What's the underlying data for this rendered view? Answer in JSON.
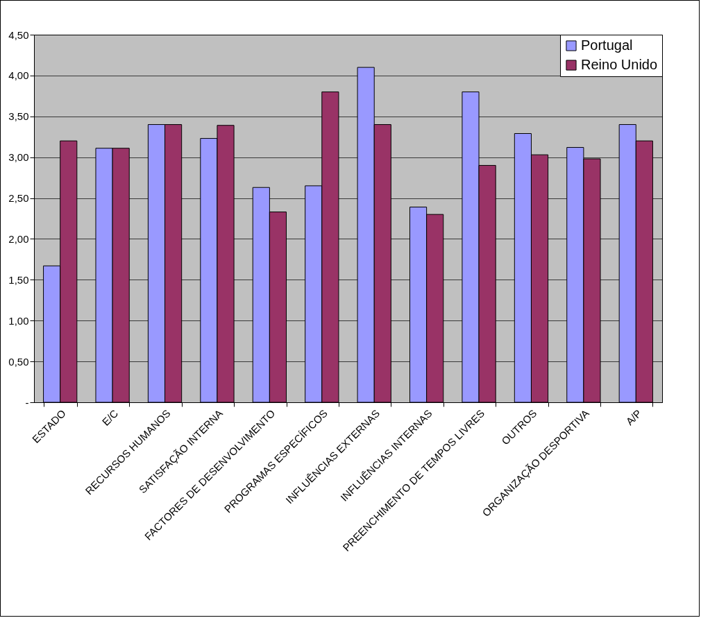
{
  "chart_data": {
    "type": "bar",
    "categories": [
      "ESTADO",
      "E/C",
      "RECURSOS HUMANOS",
      "SATISFAÇÃO INTERNA",
      "FACTORES DE DESENVOLVIMENTO",
      "PROGRAMAS ESPECÍFICOS",
      "INFLUÊNCIAS EXTERNAS",
      "INFLUÊNCIAS INTERNAS",
      "PREENCHIMENTO DE TEMPOS LIVRES",
      "OUTROS",
      "ORGANIZAÇÃO DESPORTIVA",
      "A/P"
    ],
    "series": [
      {
        "name": "Portugal",
        "color": "#9999ff",
        "values": [
          1.67,
          3.11,
          3.4,
          3.23,
          2.63,
          2.65,
          4.1,
          2.39,
          3.8,
          3.29,
          3.12,
          3.4
        ]
      },
      {
        "name": "Reino Unido",
        "color": "#993366",
        "values": [
          3.2,
          3.11,
          3.4,
          3.39,
          2.33,
          3.8,
          3.4,
          2.3,
          2.9,
          3.03,
          2.98,
          3.2
        ]
      }
    ],
    "ylim": [
      0,
      4.5
    ],
    "yticks": [
      {
        "value": 0,
        "label": "-"
      },
      {
        "value": 0.5,
        "label": "0,50"
      },
      {
        "value": 1,
        "label": "1,00"
      },
      {
        "value": 1.5,
        "label": "1,50"
      },
      {
        "value": 2,
        "label": "2,00"
      },
      {
        "value": 2.5,
        "label": "2,50"
      },
      {
        "value": 3,
        "label": "3,00"
      },
      {
        "value": 3.5,
        "label": "3,50"
      },
      {
        "value": 4,
        "label": "4,00"
      },
      {
        "value": 4.5,
        "label": "4,50"
      }
    ],
    "grid": "y",
    "legend": "top right"
  }
}
